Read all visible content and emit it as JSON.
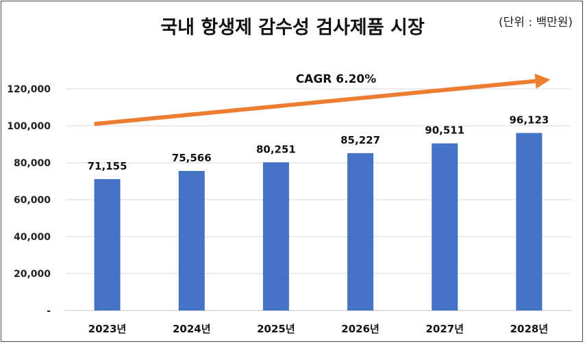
{
  "title": "국내 항생제 감수성 검사제품 시장",
  "unit": "(단위 : 백만원)",
  "chart_data": {
    "type": "bar",
    "title": "국내 항생제 감수성 검사제품 시장",
    "categories": [
      "2023년",
      "2024년",
      "2025년",
      "2026년",
      "2027년",
      "2028년"
    ],
    "values": [
      71155,
      75566,
      80251,
      85227,
      90511,
      96123
    ],
    "value_labels": [
      "71,155",
      "75,566",
      "80,251",
      "85,227",
      "90,511",
      "96,123"
    ],
    "ylim": [
      0,
      120000
    ],
    "yticks": [
      0,
      20000,
      40000,
      60000,
      80000,
      100000,
      120000
    ],
    "ytick_labels": [
      "-",
      "20,000",
      "40,000",
      "60,000",
      "80,000",
      "100,000",
      "120,000"
    ],
    "grid": true,
    "bar_color": "#4472c4",
    "annotation": {
      "text": "CAGR 6.20%",
      "arrow_color": "#ed7d31",
      "arrow_start": {
        "category_index": 0,
        "value": 101000
      },
      "arrow_end": {
        "category_index": 5,
        "value": 125000
      }
    }
  }
}
